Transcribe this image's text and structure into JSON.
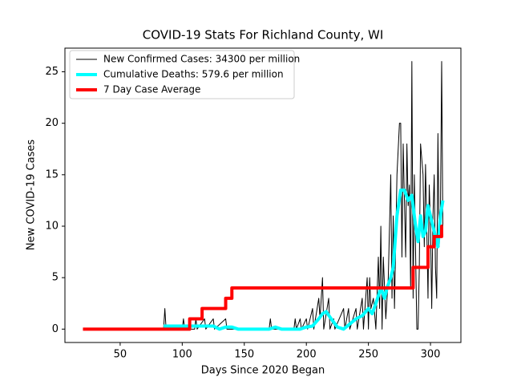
{
  "chart_data": {
    "type": "line",
    "title": "COVID-19 Stats For Richland County, WI",
    "x_label": "Days Since 2020 Began",
    "y_label": "New COVID-19 Cases",
    "xlim": [
      5.5,
      324.5
    ],
    "ylim": [
      -1.3,
      27.3
    ],
    "xticks": [
      50,
      100,
      150,
      200,
      250,
      300
    ],
    "yticks": [
      0,
      5,
      10,
      15,
      20,
      25
    ],
    "legend": "upper left",
    "series": [
      {
        "name": "New Confirmed Cases: 34300 per million",
        "color": "#000000",
        "width": 1,
        "x": [
          85,
          86,
          87,
          100,
          101,
          102,
          110,
          111,
          112,
          118,
          119,
          125,
          126,
          135,
          136,
          170,
          171,
          172,
          190,
          191,
          192,
          195,
          196,
          200,
          201,
          205,
          206,
          210,
          211,
          213,
          214,
          218,
          219,
          222,
          223,
          230,
          231,
          234,
          235,
          240,
          241,
          245,
          246,
          249,
          250,
          251,
          252,
          254,
          256,
          258,
          259,
          260,
          261,
          262,
          264,
          266,
          268,
          269,
          270,
          271,
          273,
          275,
          276,
          277,
          278,
          280,
          281,
          282,
          283,
          284,
          285,
          286,
          287,
          289,
          290,
          291,
          292,
          294,
          295,
          296,
          297,
          298,
          299,
          300,
          301,
          302,
          303,
          304,
          305,
          306,
          307,
          308,
          309,
          310
        ],
        "values": [
          0,
          2,
          0,
          0,
          1,
          0,
          0,
          1,
          0,
          1,
          0,
          1,
          0,
          1,
          0,
          0,
          1,
          0,
          0,
          1,
          0,
          1,
          0,
          1,
          0,
          2,
          0,
          3,
          1,
          5,
          0,
          3,
          0,
          1,
          0,
          2,
          0,
          2,
          0,
          2,
          0,
          3,
          0,
          5,
          0,
          5,
          2,
          3,
          0,
          7,
          2,
          10,
          0,
          7,
          1,
          5,
          15,
          3,
          11,
          2,
          15,
          20,
          20,
          7,
          18,
          7,
          18,
          12,
          14,
          4,
          26,
          3,
          15,
          0,
          0,
          6,
          18,
          15,
          8,
          16,
          10,
          3,
          14,
          10,
          2,
          11,
          15,
          6,
          3,
          19,
          8,
          11,
          26,
          9
        ]
      },
      {
        "name": "Cumulative Deaths: 579.6 per million",
        "color": "#00ffff",
        "width": 4,
        "x": [
          85,
          100,
          105,
          115,
          125,
          130,
          135,
          140,
          145,
          170,
          175,
          180,
          195,
          200,
          205,
          210,
          213,
          216,
          220,
          225,
          230,
          235,
          240,
          245,
          250,
          253,
          256,
          260,
          263,
          265,
          268,
          270,
          273,
          276,
          279,
          282,
          285,
          288,
          290,
          292,
          294,
          296,
          298,
          300,
          302,
          304,
          306,
          308,
          310
        ],
        "values": [
          0.3,
          0.3,
          0.3,
          0.3,
          0.3,
          0,
          0.2,
          0.2,
          0,
          0,
          0.2,
          0,
          0,
          0.2,
          0.3,
          1,
          1.5,
          1.7,
          1,
          0.2,
          0,
          0.5,
          1,
          1.3,
          2,
          1.5,
          2.5,
          4,
          3,
          4,
          5,
          6,
          11,
          13.5,
          13.5,
          12.5,
          13,
          10,
          8.5,
          11,
          9,
          9.5,
          12,
          11,
          10,
          9,
          8,
          11,
          12.5
        ]
      },
      {
        "name": "7 Day Case Average",
        "color": "#ff0000",
        "width": 4,
        "x": [
          20,
          106,
          106,
          116,
          116,
          135,
          135,
          140,
          140,
          286,
          286,
          298,
          298,
          303,
          303,
          309,
          309,
          310
        ],
        "values": [
          0,
          0,
          1,
          1,
          2,
          2,
          3,
          3,
          4,
          4,
          6,
          6,
          8,
          8,
          9,
          9,
          10,
          10
        ]
      }
    ]
  }
}
